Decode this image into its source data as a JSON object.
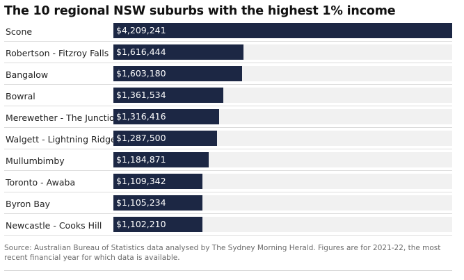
{
  "chart_data": {
    "type": "bar",
    "orientation": "horizontal",
    "title": "The 10 regional NSW suburbs with the highest 1% income",
    "categories": [
      "Scone",
      "Robertson - Fitzroy Falls",
      "Bangalow",
      "Bowral",
      "Merewether - The Junction",
      "Walgett - Lightning Ridge",
      "Mullumbimby",
      "Toronto - Awaba",
      "Byron Bay",
      "Newcastle - Cooks Hill"
    ],
    "values": [
      4209241,
      1616444,
      1603180,
      1361534,
      1316416,
      1287500,
      1184871,
      1109342,
      1105234,
      1102210
    ],
    "value_labels": [
      "$4,209,241",
      "$1,616,444",
      "$1,603,180",
      "$1,361,534",
      "$1,316,416",
      "$1,287,500",
      "$1,184,871",
      "$1,109,342",
      "$1,105,234",
      "$1,102,210"
    ],
    "xlim": [
      0,
      4209241
    ],
    "bar_color": "#1c2744",
    "track_color": "#f1f1f1",
    "grid": false,
    "legend": "none"
  },
  "footer": {
    "source": "Source: Australian Bureau of Statistics data analysed by The Sydney Morning Herald. Figures are for 2021-22, the most recent financial year for which data is available."
  }
}
